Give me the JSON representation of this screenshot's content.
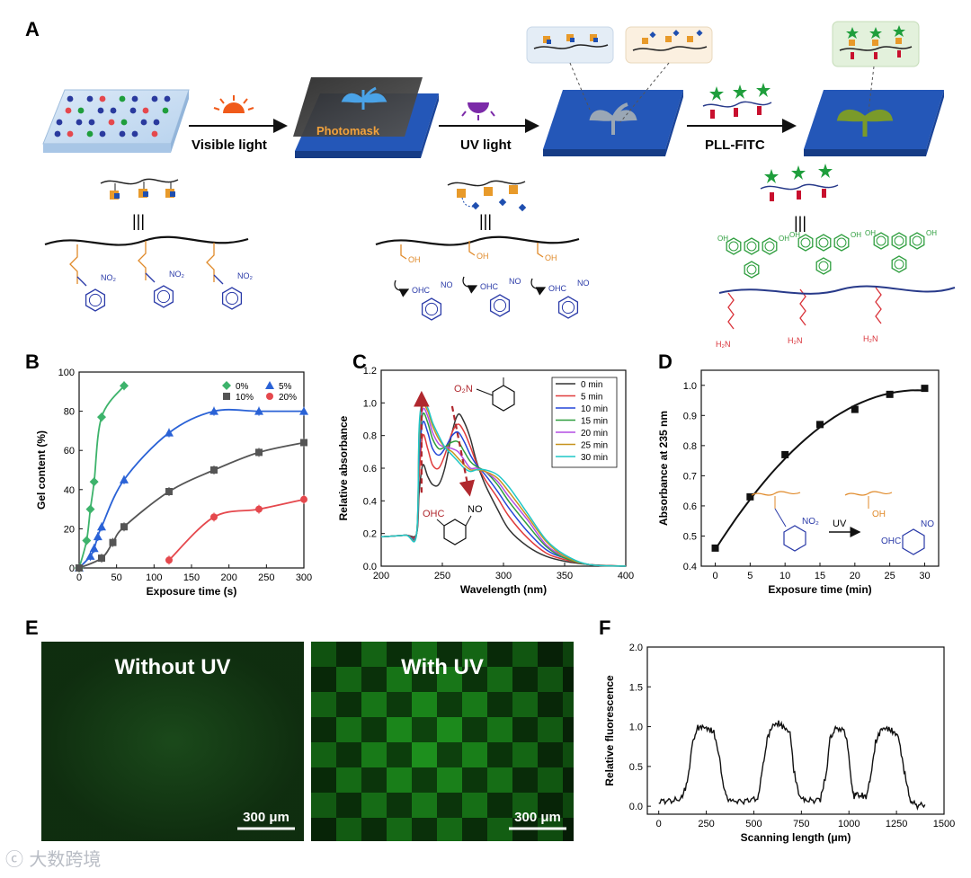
{
  "panels": {
    "A": "A",
    "B": "B",
    "C": "C",
    "D": "D",
    "E": "E",
    "F": "F"
  },
  "panel_a": {
    "step1": "Visible light",
    "photomask": "Photomask",
    "step2": "UV light",
    "step3": "PLL-FITC",
    "equiv": "|||",
    "no2": "NO₂",
    "oh": "OH",
    "ohc": "OHC",
    "no": "NO",
    "h2n": "H₂N"
  },
  "chart_data": [
    {
      "id": "B",
      "type": "scatter",
      "xlabel": "Exposure time (s)",
      "ylabel": "Gel content (%)",
      "xlim": [
        0,
        300
      ],
      "ylim": [
        0,
        100
      ],
      "xticks": [
        0,
        50,
        100,
        150,
        200,
        250,
        300
      ],
      "yticks": [
        0,
        20,
        40,
        60,
        80,
        100
      ],
      "series": [
        {
          "name": "0%",
          "color": "#3db36b",
          "marker": "diamond",
          "x": [
            0,
            10,
            15,
            20,
            30,
            60
          ],
          "y": [
            0,
            14,
            30,
            44,
            77,
            93
          ]
        },
        {
          "name": "5%",
          "color": "#2a62d6",
          "marker": "triangle",
          "x": [
            0,
            15,
            20,
            25,
            30,
            60,
            120,
            180,
            240,
            300
          ],
          "y": [
            0,
            6,
            10,
            16,
            21,
            45,
            69,
            80,
            80,
            80
          ]
        },
        {
          "name": "10%",
          "color": "#555555",
          "marker": "square",
          "x": [
            0,
            30,
            45,
            60,
            120,
            180,
            240,
            300
          ],
          "y": [
            0,
            5,
            13,
            21,
            39,
            50,
            59,
            64
          ]
        },
        {
          "name": "20%",
          "color": "#e5484d",
          "marker": "circle",
          "x": [
            120,
            180,
            240,
            300
          ],
          "y": [
            4,
            26,
            30,
            35
          ]
        }
      ]
    },
    {
      "id": "C",
      "type": "line",
      "xlabel": "Wavelength (nm)",
      "ylabel": "Relative absorbance",
      "xlim": [
        200,
        400
      ],
      "ylim": [
        0,
        1.2
      ],
      "xticks": [
        200,
        250,
        300,
        350,
        400
      ],
      "yticks": [
        0.0,
        0.2,
        0.4,
        0.6,
        0.8,
        1.0,
        1.2
      ],
      "annotations": {
        "top_group": "O₂N",
        "bottom_group": "OHC",
        "bottom_no": "NO"
      },
      "series": [
        {
          "name": "0 min",
          "color": "#333333",
          "x": [
            200,
            220,
            229,
            231,
            234,
            238,
            242,
            247,
            252,
            258,
            263,
            268,
            273,
            278,
            285,
            295,
            305,
            320,
            335,
            350,
            370,
            400
          ],
          "y": [
            0.18,
            0.19,
            0.2,
            0.45,
            0.62,
            0.55,
            0.5,
            0.5,
            0.6,
            0.82,
            0.93,
            0.88,
            0.78,
            0.64,
            0.5,
            0.35,
            0.22,
            0.12,
            0.06,
            0.03,
            0.01,
            0.0
          ]
        },
        {
          "name": "5 min",
          "color": "#e03c3c",
          "x": [
            200,
            220,
            229,
            231,
            234,
            238,
            242,
            247,
            252,
            258,
            263,
            268,
            273,
            278,
            285,
            295,
            305,
            320,
            335,
            350,
            370,
            400
          ],
          "y": [
            0.18,
            0.19,
            0.2,
            0.55,
            0.8,
            0.72,
            0.62,
            0.6,
            0.68,
            0.82,
            0.87,
            0.82,
            0.73,
            0.63,
            0.53,
            0.42,
            0.3,
            0.17,
            0.08,
            0.04,
            0.01,
            0.0
          ]
        },
        {
          "name": "10 min",
          "color": "#2346d8",
          "x": [
            200,
            220,
            229,
            231,
            234,
            238,
            242,
            247,
            252,
            258,
            263,
            268,
            273,
            278,
            285,
            295,
            305,
            320,
            335,
            350,
            370,
            400
          ],
          "y": [
            0.18,
            0.19,
            0.2,
            0.65,
            0.88,
            0.82,
            0.72,
            0.68,
            0.72,
            0.8,
            0.82,
            0.76,
            0.68,
            0.62,
            0.56,
            0.46,
            0.35,
            0.21,
            0.1,
            0.05,
            0.01,
            0.0
          ]
        },
        {
          "name": "15 min",
          "color": "#2e9e3e",
          "x": [
            200,
            220,
            229,
            231,
            234,
            238,
            242,
            247,
            252,
            258,
            263,
            268,
            273,
            278,
            285,
            295,
            305,
            320,
            335,
            350,
            370,
            400
          ],
          "y": [
            0.18,
            0.19,
            0.2,
            0.72,
            0.93,
            0.88,
            0.78,
            0.72,
            0.73,
            0.76,
            0.76,
            0.7,
            0.64,
            0.61,
            0.58,
            0.5,
            0.39,
            0.25,
            0.12,
            0.05,
            0.01,
            0.0
          ]
        },
        {
          "name": "20 min",
          "color": "#b34de3",
          "x": [
            200,
            220,
            229,
            231,
            234,
            238,
            242,
            247,
            252,
            258,
            263,
            268,
            273,
            278,
            285,
            295,
            305,
            320,
            335,
            350,
            370,
            400
          ],
          "y": [
            0.18,
            0.19,
            0.2,
            0.78,
            0.96,
            0.92,
            0.82,
            0.75,
            0.73,
            0.72,
            0.7,
            0.65,
            0.6,
            0.6,
            0.58,
            0.52,
            0.42,
            0.28,
            0.13,
            0.06,
            0.01,
            0.0
          ]
        },
        {
          "name": "25 min",
          "color": "#c7921e",
          "x": [
            200,
            220,
            229,
            231,
            234,
            238,
            242,
            247,
            252,
            258,
            263,
            268,
            273,
            278,
            285,
            295,
            305,
            320,
            335,
            350,
            370,
            400
          ],
          "y": [
            0.18,
            0.19,
            0.2,
            0.82,
            0.98,
            0.95,
            0.86,
            0.78,
            0.73,
            0.7,
            0.66,
            0.62,
            0.59,
            0.59,
            0.58,
            0.54,
            0.45,
            0.3,
            0.15,
            0.06,
            0.01,
            0.0
          ]
        },
        {
          "name": "30 min",
          "color": "#1ec7c7",
          "x": [
            200,
            220,
            229,
            231,
            234,
            238,
            242,
            247,
            252,
            258,
            263,
            268,
            273,
            278,
            285,
            295,
            305,
            320,
            335,
            350,
            370,
            400
          ],
          "y": [
            0.18,
            0.19,
            0.2,
            0.85,
            1.0,
            0.97,
            0.88,
            0.8,
            0.73,
            0.68,
            0.64,
            0.6,
            0.58,
            0.59,
            0.59,
            0.56,
            0.48,
            0.32,
            0.16,
            0.07,
            0.01,
            0.0
          ]
        }
      ]
    },
    {
      "id": "D",
      "type": "scatter",
      "xlabel": "Exposure time (min)",
      "ylabel": "Absorbance at 235 nm",
      "xlim": [
        -2,
        32
      ],
      "ylim": [
        0.4,
        1.05
      ],
      "xticks": [
        0,
        5,
        10,
        15,
        20,
        25,
        30
      ],
      "yticks": [
        0.4,
        0.5,
        0.6,
        0.7,
        0.8,
        0.9,
        1.0
      ],
      "x": [
        0,
        5,
        10,
        15,
        20,
        25,
        30
      ],
      "y": [
        0.46,
        0.63,
        0.77,
        0.87,
        0.92,
        0.97,
        0.99
      ],
      "inset": {
        "arrow_label": "UV",
        "no2": "NO₂",
        "oh": "OH",
        "ohc": "OHC",
        "no": "NO"
      }
    },
    {
      "id": "F",
      "type": "line",
      "xlabel": "Scanning length (μm)",
      "ylabel": "Relative fluorescence",
      "xlim": [
        -60,
        1500
      ],
      "ylim": [
        -0.1,
        2.0
      ],
      "xticks": [
        0,
        250,
        500,
        750,
        1000,
        1250,
        1500
      ],
      "yticks": [
        0.0,
        0.5,
        1.0,
        1.5,
        2.0
      ],
      "series": [
        {
          "name": "profile",
          "color": "#111111",
          "x": [
            0,
            40,
            80,
            120,
            150,
            175,
            200,
            230,
            260,
            290,
            320,
            345,
            370,
            400,
            440,
            480,
            520,
            545,
            570,
            600,
            630,
            660,
            690,
            710,
            740,
            770,
            810,
            850,
            880,
            900,
            925,
            950,
            970,
            990,
            1010,
            1025,
            1040,
            1060,
            1090,
            1110,
            1140,
            1170,
            1200,
            1230,
            1260,
            1290,
            1320,
            1340,
            1360,
            1400
          ],
          "y": [
            0.06,
            0.07,
            0.07,
            0.1,
            0.3,
            0.75,
            0.98,
            1.0,
            0.97,
            0.93,
            0.6,
            0.18,
            0.08,
            0.07,
            0.06,
            0.08,
            0.1,
            0.45,
            0.85,
            1.02,
            1.04,
            0.99,
            0.92,
            0.45,
            0.12,
            0.08,
            0.07,
            0.09,
            0.4,
            0.85,
            0.96,
            0.99,
            0.95,
            0.85,
            0.35,
            0.12,
            0.16,
            0.14,
            0.12,
            0.3,
            0.8,
            0.97,
            0.98,
            0.94,
            0.88,
            0.45,
            0.1,
            0.03,
            0.01,
            0.02
          ]
        }
      ]
    }
  ],
  "panel_e": {
    "left_label": "Without UV",
    "right_label": "With UV",
    "scale_left": "300 μm",
    "scale_right": "300 μm"
  },
  "watermark": "ⓒ 大数跨境"
}
